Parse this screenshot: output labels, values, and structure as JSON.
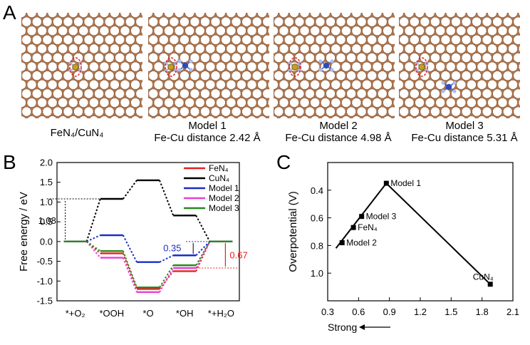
{
  "panel_a": {
    "label": "A",
    "captions": [
      {
        "line1": "FeN₄/CuN₄",
        "line2": ""
      },
      {
        "line1": "Model 1",
        "line2": "Fe-Cu distance 2.42 Å"
      },
      {
        "line1": "Model 2",
        "line2": "Fe-Cu distance 4.98 Å"
      },
      {
        "line1": "Model 3",
        "line2": "Fe-Cu distance 5.31 Å"
      }
    ]
  },
  "chart_data": [
    {
      "panel": "B",
      "type": "line",
      "ylabel": "Free energy / eV",
      "categories": [
        "*+O₂",
        "*OOH",
        "*O",
        "*OH",
        "*+H₂O"
      ],
      "ylim": [
        -1.5,
        2.0
      ],
      "yticks": [
        -1.5,
        -1.0,
        -0.5,
        0.0,
        0.5,
        1.0,
        1.5,
        2.0
      ],
      "series": [
        {
          "name": "FeN₄",
          "color": "#e8201e",
          "values": [
            0,
            -0.3,
            -1.2,
            -0.75,
            0
          ]
        },
        {
          "name": "CuN₄",
          "color": "#000000",
          "values": [
            0,
            1.08,
            1.55,
            0.66,
            0
          ]
        },
        {
          "name": "Model 1",
          "color": "#1a2ec8",
          "values": [
            0,
            0.16,
            -0.52,
            -0.35,
            0
          ]
        },
        {
          "name": "Model 2",
          "color": "#e83fd9",
          "values": [
            0,
            -0.41,
            -1.28,
            -0.67,
            0
          ]
        },
        {
          "name": "Model 3",
          "color": "#278a1f",
          "values": [
            0,
            -0.24,
            -1.16,
            -0.6,
            0
          ]
        }
      ],
      "annotations": [
        {
          "text": "1.08",
          "color": "#000000"
        },
        {
          "text": "0.35",
          "color": "#1a2ec8"
        },
        {
          "text": "0.67",
          "color": "#e8201e"
        }
      ]
    },
    {
      "panel": "C",
      "type": "scatter",
      "ylabel": "Overpotential (V)",
      "xlim": [
        0.3,
        2.1
      ],
      "xticks": [
        0.3,
        0.6,
        0.9,
        1.2,
        1.5,
        1.8,
        2.1
      ],
      "ylim": [
        0.2,
        1.2
      ],
      "yticks": [
        0.4,
        0.6,
        0.8,
        1.0
      ],
      "y_inverted": true,
      "points": [
        {
          "label": "Model 2",
          "x": 0.44,
          "y": 0.78
        },
        {
          "label": "FeN₄",
          "x": 0.55,
          "y": 0.67
        },
        {
          "label": "Model 3",
          "x": 0.63,
          "y": 0.59
        },
        {
          "label": "Model 1",
          "x": 0.87,
          "y": 0.35
        },
        {
          "label": "CuN₄",
          "x": 1.88,
          "y": 1.08
        }
      ],
      "volcano_line": [
        [
          0.38,
          0.82
        ],
        [
          0.87,
          0.35
        ],
        [
          1.88,
          1.08
        ]
      ],
      "bottom_left_label": "Strong"
    }
  ],
  "panel_labels": {
    "b": "B",
    "c": "C"
  }
}
